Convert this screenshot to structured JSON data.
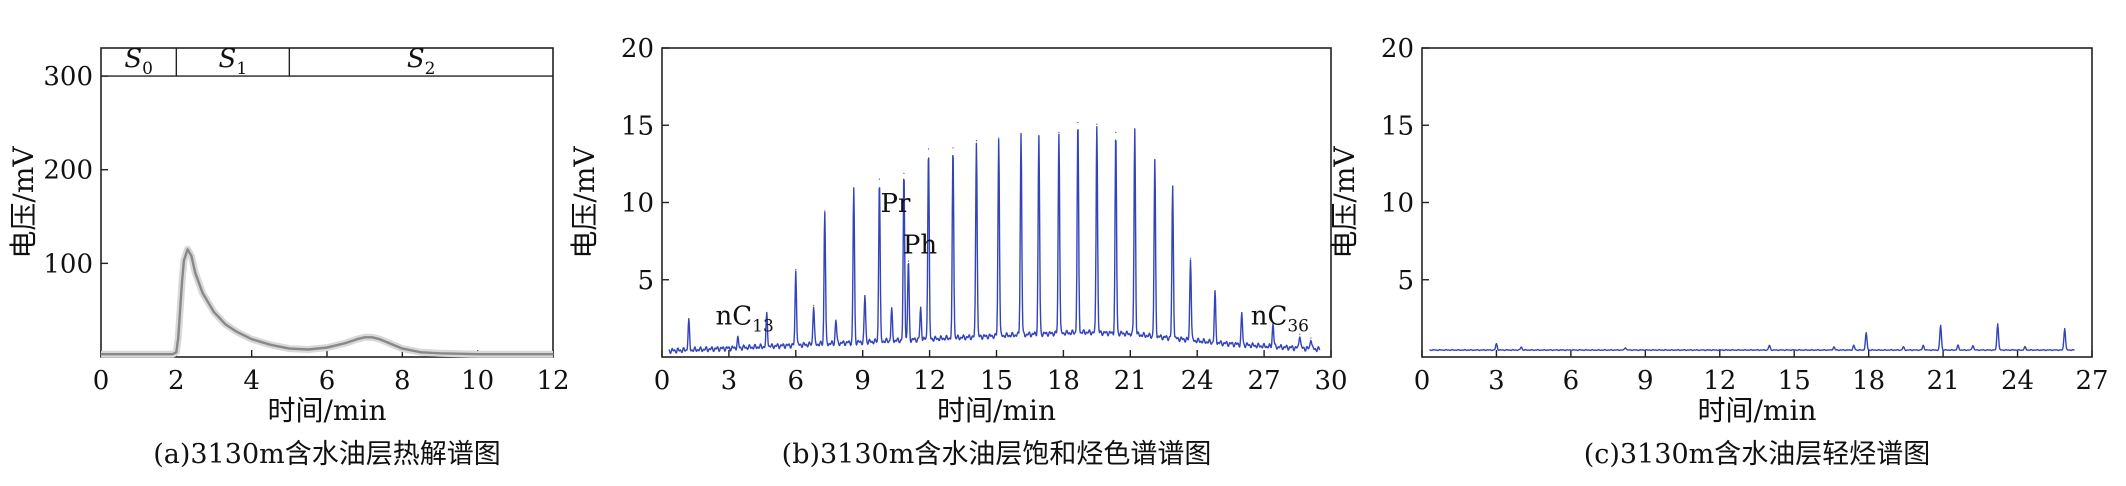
{
  "chart_data": [
    {
      "type": "area",
      "caption": "(a)3130m含水油层热解谱图",
      "xlabel": "时间/min",
      "ylabel": "电压/mV",
      "xlim": [
        0,
        12
      ],
      "ylim": [
        0,
        330
      ],
      "xticks": [
        0,
        2,
        4,
        6,
        8,
        10,
        12
      ],
      "yticks": [
        100,
        200,
        300
      ],
      "series_color": "#888888",
      "segments": [
        {
          "label": "S0",
          "base": "S",
          "sub": "0",
          "from": 0,
          "to": 2
        },
        {
          "label": "S1",
          "base": "S",
          "sub": "1",
          "from": 2,
          "to": 5
        },
        {
          "label": "S2",
          "base": "S",
          "sub": "2",
          "from": 5,
          "to": 12
        }
      ],
      "series": [
        {
          "x": [
            0,
            1.9,
            2.0,
            2.05,
            2.1,
            2.15,
            2.2,
            2.3,
            2.4,
            2.5,
            2.7,
            3.0,
            3.3,
            3.6,
            4.0,
            4.5,
            5.0,
            5.5,
            6.0,
            6.5,
            6.8,
            7.0,
            7.2,
            7.4,
            7.7,
            8.0,
            8.5,
            9.0,
            10.0,
            11.0,
            12.0
          ],
          "y": [
            3,
            3,
            5,
            20,
            50,
            80,
            103,
            115,
            108,
            90,
            68,
            48,
            35,
            27,
            19,
            13,
            9,
            8,
            10,
            15,
            19,
            21,
            21,
            19,
            14,
            9,
            5,
            4,
            3,
            3,
            3
          ]
        }
      ]
    },
    {
      "type": "line",
      "caption": "(b)3130m含水油层饱和烃色谱谱图",
      "xlabel": "时间/min",
      "ylabel": "电压/mV",
      "xlim": [
        0,
        30
      ],
      "ylim": [
        0,
        20
      ],
      "xticks": [
        0,
        3,
        6,
        9,
        12,
        15,
        18,
        21,
        24,
        27,
        30
      ],
      "yticks": [
        5,
        10,
        15,
        20
      ],
      "series_color": "#3344bb",
      "baseline": [
        [
          0.3,
          0.4
        ],
        [
          2,
          0.5
        ],
        [
          5,
          0.7
        ],
        [
          8,
          0.9
        ],
        [
          11,
          1.1
        ],
        [
          14,
          1.3
        ],
        [
          17,
          1.5
        ],
        [
          19,
          1.6
        ],
        [
          21,
          1.5
        ],
        [
          23,
          1.2
        ],
        [
          25,
          0.9
        ],
        [
          27,
          0.7
        ],
        [
          29.5,
          0.5
        ]
      ],
      "peaks": [
        {
          "x": 1.2,
          "h": 1.9
        },
        {
          "x": 3.4,
          "h": 0.6
        },
        {
          "x": 4.7,
          "h": 2.1
        },
        {
          "x": 6.0,
          "h": 4.9
        },
        {
          "x": 6.8,
          "h": 2.5
        },
        {
          "x": 7.3,
          "h": 8.6
        },
        {
          "x": 7.8,
          "h": 1.5
        },
        {
          "x": 8.6,
          "h": 10.0
        },
        {
          "x": 9.1,
          "h": 3.0
        },
        {
          "x": 9.75,
          "h": 10.5
        },
        {
          "x": 10.3,
          "h": 2.0
        },
        {
          "x": 10.85,
          "h": 10.8
        },
        {
          "x": 11.05,
          "h": 5.1
        },
        {
          "x": 11.6,
          "h": 2.0
        },
        {
          "x": 11.95,
          "h": 12.3
        },
        {
          "x": 13.05,
          "h": 12.3
        },
        {
          "x": 14.1,
          "h": 12.7
        },
        {
          "x": 15.1,
          "h": 12.8
        },
        {
          "x": 16.1,
          "h": 13.0
        },
        {
          "x": 16.9,
          "h": 12.8
        },
        {
          "x": 17.8,
          "h": 13.0
        },
        {
          "x": 18.65,
          "h": 13.6
        },
        {
          "x": 19.5,
          "h": 13.5
        },
        {
          "x": 20.35,
          "h": 13.0
        },
        {
          "x": 21.2,
          "h": 13.3
        },
        {
          "x": 22.1,
          "h": 11.3
        },
        {
          "x": 22.9,
          "h": 9.8
        },
        {
          "x": 23.7,
          "h": 5.3
        },
        {
          "x": 24.8,
          "h": 3.2
        },
        {
          "x": 26.0,
          "h": 2.0
        },
        {
          "x": 27.4,
          "h": 1.5
        },
        {
          "x": 28.6,
          "h": 0.9
        },
        {
          "x": 29.1,
          "h": 0.7
        }
      ],
      "annotations": [
        {
          "text": "nC",
          "sub": "13",
          "x": 2.4,
          "y": 2.1
        },
        {
          "text": "Pr",
          "sub": "",
          "x": 9.8,
          "y": 9.4
        },
        {
          "text": "Ph",
          "sub": "",
          "x": 10.8,
          "y": 6.7
        },
        {
          "text": "nC",
          "sub": "36",
          "x": 26.4,
          "y": 2.1
        }
      ]
    },
    {
      "type": "line",
      "caption": "(c)3130m含水油层轻烃谱图",
      "xlabel": "时间/min",
      "ylabel": "电压/mV",
      "xlim": [
        0,
        27
      ],
      "ylim": [
        0,
        20
      ],
      "xticks": [
        0,
        3,
        6,
        9,
        12,
        15,
        18,
        21,
        24,
        27
      ],
      "yticks": [
        5,
        10,
        15,
        20
      ],
      "series_color": "#3344bb",
      "baseline_y": 0.45,
      "x_start": 0.3,
      "x_end": 26.3,
      "peaks": [
        {
          "x": 3.0,
          "h": 0.4
        },
        {
          "x": 4.0,
          "h": 0.2
        },
        {
          "x": 8.2,
          "h": 0.15
        },
        {
          "x": 14.0,
          "h": 0.3
        },
        {
          "x": 16.6,
          "h": 0.2
        },
        {
          "x": 17.4,
          "h": 0.3
        },
        {
          "x": 17.9,
          "h": 1.1
        },
        {
          "x": 19.4,
          "h": 0.2
        },
        {
          "x": 20.2,
          "h": 0.3
        },
        {
          "x": 20.9,
          "h": 1.6
        },
        {
          "x": 21.6,
          "h": 0.3
        },
        {
          "x": 22.2,
          "h": 0.3
        },
        {
          "x": 23.2,
          "h": 1.7
        },
        {
          "x": 24.3,
          "h": 0.2
        },
        {
          "x": 25.9,
          "h": 1.4
        }
      ]
    }
  ]
}
